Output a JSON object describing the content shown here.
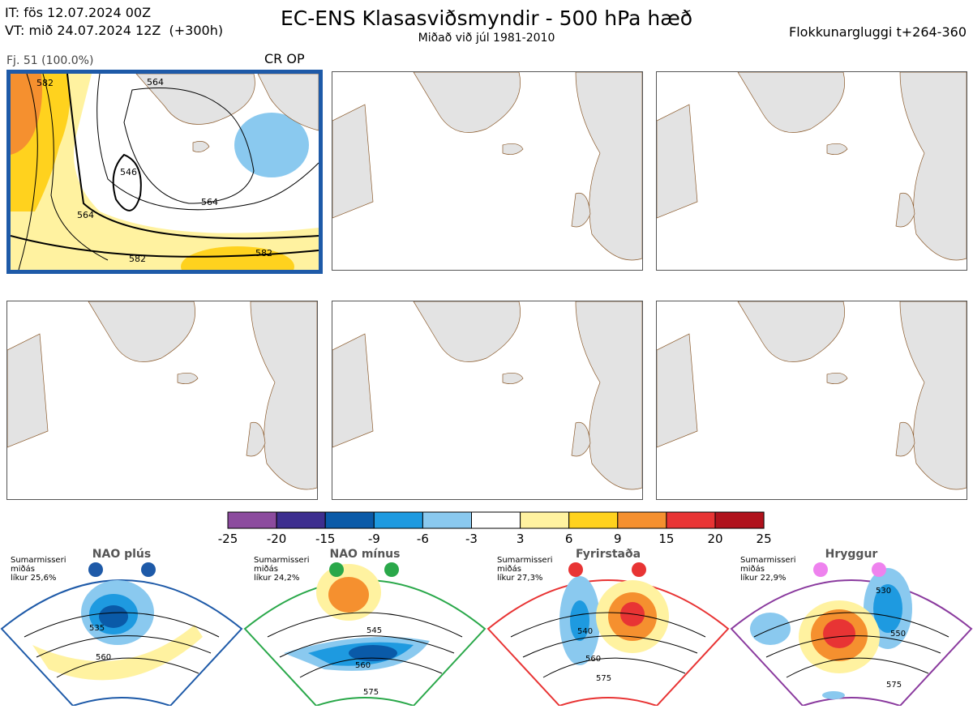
{
  "header": {
    "init_time": "IT: fös 12.07.2024 00Z",
    "valid_time": "VT: mið 24.07.2024 12Z  (+300h)",
    "title": "EC-ENS Klasasviðsmyndir - 500 hPa hæð",
    "subtitle": "Miðað við júl 1981-2010",
    "window": "Flokkunargluggi t+264-360"
  },
  "cluster": {
    "label": "Fj. 51 (100.0%)",
    "tag": "CR OP",
    "border_color": "#1e5aa8",
    "contour_labels": [
      "582",
      "564",
      "546",
      "564",
      "564",
      "582",
      "582"
    ]
  },
  "legend": {
    "ticks": [
      "-25",
      "-20",
      "-15",
      "-9",
      "-6",
      "-3",
      "3",
      "6",
      "9",
      "15",
      "20",
      "25"
    ],
    "colors": [
      "#8c4b9e",
      "#3d2e8f",
      "#0a5aa8",
      "#1e9ae0",
      "#8ac9ef",
      "#ffffff",
      "#fff2a0",
      "#ffd21e",
      "#f5902f",
      "#e83434",
      "#b0121c"
    ]
  },
  "regimes": [
    {
      "name": "NAO plús",
      "note": "Sumarmisseri\nmiðás\nlíkur 25,6%",
      "color": "#1e5aa8",
      "labels": [
        "535",
        "560"
      ],
      "dot_color": "#1e5aa8"
    },
    {
      "name": "NAO mínus",
      "note": "Sumarmisseri\nmiðás\nlíkur 24,2%",
      "color": "#2aa84a",
      "labels": [
        "545",
        "560",
        "575"
      ],
      "dot_color": "#2aa84a"
    },
    {
      "name": "Fyrirstaða",
      "note": "Sumarmisseri\nmiðás\nlíkur 27,3%",
      "color": "#e83434",
      "labels": [
        "540",
        "560",
        "575"
      ],
      "dot_color": "#e83434"
    },
    {
      "name": "Hryggur",
      "note": "Sumarmisseri\nmiðás\nlíkur 22,9%",
      "color": "#8a3a9e",
      "labels": [
        "530",
        "550",
        "575"
      ],
      "dot_color": "#ee82ee"
    }
  ]
}
